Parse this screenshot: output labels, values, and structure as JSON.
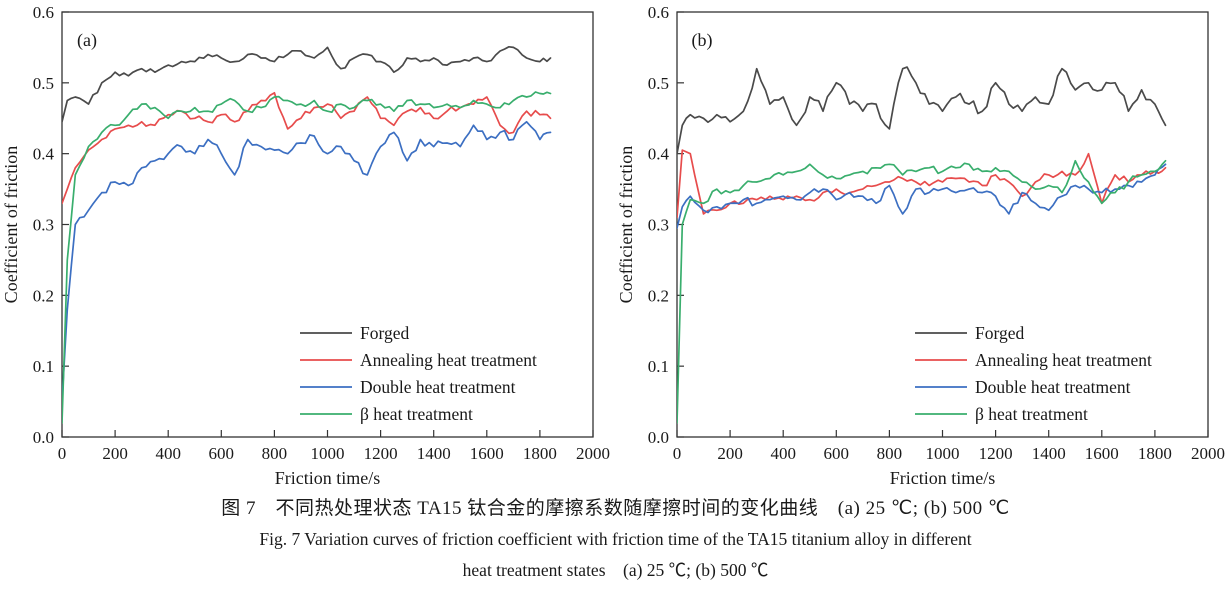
{
  "figure": {
    "caption_chinese": "图 7　不同热处理状态 TA15 钛合金的摩擦系数随摩擦时间的变化曲线　(a) 25 ℃; (b) 500 ℃",
    "caption_english_line1": "Fig. 7   Variation curves of friction coefficient with friction time of the TA15 titanium alloy in different",
    "caption_english_line2": "heat treatment states　(a) 25 ℃; (b) 500 ℃"
  },
  "colors": {
    "axis": "#333333",
    "text": "#1a1a1a",
    "forged": "#4a4a4a",
    "annealing": "#e74c4c",
    "double": "#3c6fc2",
    "beta": "#39ae6d"
  },
  "chart_data": [
    {
      "type": "line",
      "panel_label": "(a)",
      "xlabel": "Friction time/s",
      "ylabel": "Coefficient of friction",
      "xlim": [
        0,
        2000
      ],
      "ylim": [
        0.0,
        0.6
      ],
      "xticks": [
        0,
        200,
        400,
        600,
        800,
        1000,
        1200,
        1400,
        1600,
        1800,
        2000
      ],
      "yticks": [
        0.0,
        0.1,
        0.2,
        0.3,
        0.4,
        0.5,
        0.6
      ],
      "grid": false,
      "legend_position": "lower right",
      "x": [
        0,
        20,
        50,
        100,
        150,
        200,
        250,
        300,
        350,
        400,
        450,
        500,
        550,
        600,
        650,
        700,
        750,
        800,
        850,
        900,
        950,
        1000,
        1050,
        1100,
        1150,
        1200,
        1250,
        1300,
        1350,
        1400,
        1450,
        1500,
        1550,
        1600,
        1650,
        1700,
        1750,
        1800,
        1840
      ],
      "series": [
        {
          "name": "Forged",
          "color": "#4a4a4a",
          "noise": 0.004,
          "y": [
            0.445,
            0.475,
            0.48,
            0.47,
            0.5,
            0.515,
            0.51,
            0.52,
            0.515,
            0.525,
            0.53,
            0.53,
            0.54,
            0.535,
            0.53,
            0.54,
            0.535,
            0.53,
            0.54,
            0.545,
            0.535,
            0.55,
            0.52,
            0.535,
            0.54,
            0.53,
            0.515,
            0.535,
            0.53,
            0.535,
            0.525,
            0.53,
            0.535,
            0.53,
            0.545,
            0.55,
            0.535,
            0.53,
            0.535
          ]
        },
        {
          "name": "Annealing heat treatment",
          "color": "#e74c4c",
          "noise": 0.005,
          "y": [
            0.33,
            0.35,
            0.38,
            0.405,
            0.42,
            0.435,
            0.44,
            0.445,
            0.44,
            0.455,
            0.46,
            0.45,
            0.445,
            0.455,
            0.445,
            0.46,
            0.475,
            0.486,
            0.435,
            0.45,
            0.465,
            0.47,
            0.45,
            0.46,
            0.48,
            0.45,
            0.44,
            0.46,
            0.465,
            0.45,
            0.46,
            0.465,
            0.47,
            0.48,
            0.44,
            0.43,
            0.46,
            0.455,
            0.45
          ]
        },
        {
          "name": "Double heat treatment",
          "color": "#3c6fc2",
          "noise": 0.006,
          "y": [
            0.05,
            0.18,
            0.3,
            0.32,
            0.345,
            0.36,
            0.355,
            0.38,
            0.39,
            0.4,
            0.41,
            0.4,
            0.42,
            0.4,
            0.37,
            0.42,
            0.41,
            0.405,
            0.4,
            0.415,
            0.425,
            0.4,
            0.41,
            0.39,
            0.37,
            0.41,
            0.43,
            0.39,
            0.42,
            0.41,
            0.415,
            0.41,
            0.44,
            0.42,
            0.43,
            0.42,
            0.445,
            0.42,
            0.43
          ]
        },
        {
          "name": "β heat treatment",
          "color": "#39ae6d",
          "noise": 0.005,
          "y": [
            0.02,
            0.25,
            0.37,
            0.41,
            0.43,
            0.44,
            0.455,
            0.47,
            0.465,
            0.45,
            0.46,
            0.465,
            0.46,
            0.47,
            0.475,
            0.46,
            0.465,
            0.48,
            0.475,
            0.47,
            0.475,
            0.46,
            0.47,
            0.465,
            0.475,
            0.47,
            0.46,
            0.475,
            0.47,
            0.465,
            0.47,
            0.465,
            0.475,
            0.47,
            0.465,
            0.475,
            0.48,
            0.485,
            0.485
          ]
        }
      ]
    },
    {
      "type": "line",
      "panel_label": "(b)",
      "xlabel": "Friction time/s",
      "ylabel": "Coefficient of friction",
      "xlim": [
        0,
        2000
      ],
      "ylim": [
        0.0,
        0.6
      ],
      "xticks": [
        0,
        200,
        400,
        600,
        800,
        1000,
        1200,
        1400,
        1600,
        1800,
        2000
      ],
      "yticks": [
        0.0,
        0.1,
        0.2,
        0.3,
        0.4,
        0.5,
        0.6
      ],
      "grid": false,
      "legend_position": "lower right",
      "x": [
        0,
        20,
        50,
        100,
        150,
        200,
        250,
        300,
        350,
        400,
        450,
        500,
        550,
        600,
        650,
        700,
        750,
        800,
        850,
        900,
        950,
        1000,
        1050,
        1100,
        1150,
        1200,
        1250,
        1300,
        1350,
        1400,
        1450,
        1500,
        1550,
        1600,
        1650,
        1700,
        1750,
        1800,
        1840
      ],
      "series": [
        {
          "name": "Forged",
          "color": "#4a4a4a",
          "noise": 0.009,
          "y": [
            0.4,
            0.44,
            0.455,
            0.45,
            0.455,
            0.445,
            0.46,
            0.52,
            0.47,
            0.48,
            0.44,
            0.48,
            0.46,
            0.5,
            0.47,
            0.46,
            0.47,
            0.435,
            0.52,
            0.5,
            0.47,
            0.46,
            0.48,
            0.47,
            0.46,
            0.5,
            0.47,
            0.46,
            0.48,
            0.47,
            0.52,
            0.49,
            0.5,
            0.49,
            0.5,
            0.46,
            0.49,
            0.47,
            0.44
          ]
        },
        {
          "name": "Annealing heat treatment",
          "color": "#e74c4c",
          "noise": 0.005,
          "y": [
            0.31,
            0.405,
            0.4,
            0.315,
            0.32,
            0.33,
            0.33,
            0.335,
            0.34,
            0.335,
            0.34,
            0.335,
            0.345,
            0.35,
            0.345,
            0.35,
            0.355,
            0.36,
            0.365,
            0.36,
            0.355,
            0.36,
            0.365,
            0.36,
            0.355,
            0.37,
            0.36,
            0.34,
            0.36,
            0.37,
            0.375,
            0.37,
            0.4,
            0.33,
            0.37,
            0.36,
            0.37,
            0.375,
            0.38
          ]
        },
        {
          "name": "Double heat treatment",
          "color": "#3c6fc2",
          "noise": 0.005,
          "y": [
            0.295,
            0.325,
            0.34,
            0.32,
            0.325,
            0.33,
            0.335,
            0.33,
            0.335,
            0.34,
            0.335,
            0.345,
            0.35,
            0.335,
            0.345,
            0.34,
            0.33,
            0.355,
            0.315,
            0.35,
            0.345,
            0.35,
            0.345,
            0.35,
            0.345,
            0.34,
            0.315,
            0.345,
            0.33,
            0.32,
            0.34,
            0.355,
            0.35,
            0.345,
            0.35,
            0.355,
            0.36,
            0.37,
            0.385
          ]
        },
        {
          "name": "β heat treatment",
          "color": "#39ae6d",
          "noise": 0.005,
          "y": [
            0.02,
            0.3,
            0.335,
            0.33,
            0.35,
            0.345,
            0.355,
            0.36,
            0.365,
            0.37,
            0.375,
            0.385,
            0.37,
            0.365,
            0.37,
            0.375,
            0.38,
            0.385,
            0.37,
            0.375,
            0.38,
            0.375,
            0.38,
            0.385,
            0.375,
            0.38,
            0.375,
            0.36,
            0.35,
            0.355,
            0.345,
            0.39,
            0.36,
            0.33,
            0.345,
            0.36,
            0.37,
            0.375,
            0.39
          ]
        }
      ]
    }
  ]
}
